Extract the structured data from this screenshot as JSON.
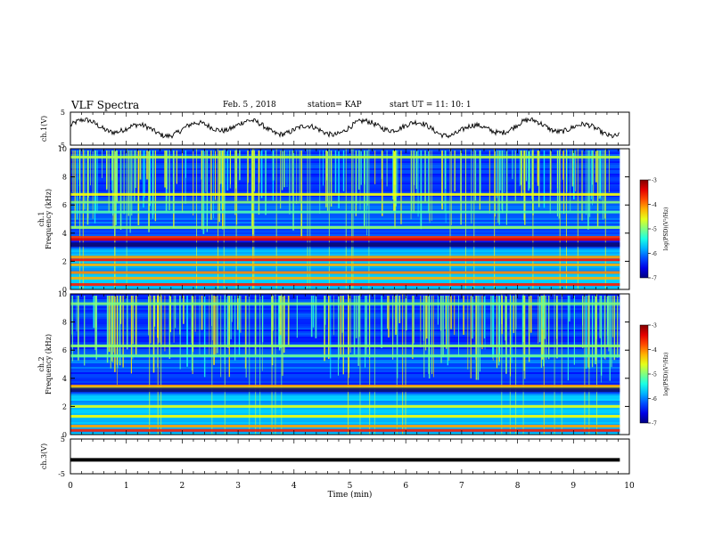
{
  "header": {
    "title": "VLF Spectra",
    "date": "Feb. 5 , 2018",
    "station": "station= KAP",
    "start_ut": "start UT =  11: 10: 1"
  },
  "chart_data": [
    {
      "type": "line",
      "name": "ch1-waveform",
      "ylabel": "ch.1(V)",
      "ylim": [
        -5,
        5
      ],
      "yticks": [
        "5",
        "-5"
      ],
      "xlim": [
        0,
        10
      ],
      "grid": false
    },
    {
      "type": "heatmap",
      "name": "ch1-spectrogram",
      "ylabel": "ch.1\nFrequency (kHz)",
      "ylabel_lines": [
        "ch.1",
        "Frequency (kHz)"
      ],
      "ylim": [
        0,
        10
      ],
      "yticks": [
        "0",
        "2",
        "4",
        "6",
        "8",
        "10"
      ],
      "xlim": [
        0,
        10
      ],
      "signal_end_min": 9.83,
      "bands_khz": [
        {
          "f": 9.4,
          "level": 0.55
        },
        {
          "f": 6.75,
          "level": 0.62
        },
        {
          "f": 6.2,
          "level": 0.5
        },
        {
          "f": 5.5,
          "level": 0.45
        },
        {
          "f": 4.4,
          "level": 0.52
        },
        {
          "f": 3.7,
          "level": 0.82
        },
        {
          "f": 3.55,
          "level": 0.9
        },
        {
          "f": 2.3,
          "level": 0.72
        },
        {
          "f": 2.1,
          "level": 0.86
        },
        {
          "f": 1.75,
          "level": 0.7
        },
        {
          "f": 1.2,
          "level": 0.75
        },
        {
          "f": 0.8,
          "level": 0.7
        },
        {
          "f": 0.35,
          "level": 0.85
        }
      ],
      "colorbar": {
        "label": "log(PSD)(V²/Hz)",
        "ticks": [
          "-3",
          "-4",
          "-5",
          "-6",
          "-7"
        ],
        "range": [
          -7,
          -3
        ]
      }
    },
    {
      "type": "heatmap",
      "name": "ch2-spectrogram",
      "ylabel": "ch.2\nFrequency (kHz)",
      "ylabel_lines": [
        "ch.2",
        "Frequency (kHz)"
      ],
      "ylim": [
        0,
        10
      ],
      "yticks": [
        "0",
        "2",
        "4",
        "6",
        "8",
        "10"
      ],
      "xlim": [
        0,
        10
      ],
      "signal_end_min": 9.83,
      "bands_khz": [
        {
          "f": 9.3,
          "level": 0.5
        },
        {
          "f": 6.3,
          "level": 0.52
        },
        {
          "f": 5.6,
          "level": 0.48
        },
        {
          "f": 3.45,
          "level": 0.72
        },
        {
          "f": 3.3,
          "level": 0.6
        },
        {
          "f": 2.0,
          "level": 0.6
        },
        {
          "f": 1.3,
          "level": 0.62
        },
        {
          "f": 0.6,
          "level": 0.72
        },
        {
          "f": 0.3,
          "level": 0.85
        }
      ],
      "colorbar": {
        "label": "log(PSD)(V²/Hz)",
        "ticks": [
          "-3",
          "-4",
          "-5",
          "-6",
          "-7"
        ],
        "range": [
          -7,
          -3
        ]
      }
    },
    {
      "type": "line",
      "name": "ch3-waveform",
      "ylabel": "ch.3(V)",
      "ylim": [
        -5,
        5
      ],
      "yticks": [
        "5",
        "-5"
      ],
      "xlim": [
        0,
        10
      ],
      "level_v": -1.0,
      "xlabel": "Time (min)",
      "xticks": [
        "0",
        "1",
        "2",
        "3",
        "4",
        "5",
        "6",
        "7",
        "8",
        "9",
        "10"
      ],
      "grid": false
    }
  ]
}
